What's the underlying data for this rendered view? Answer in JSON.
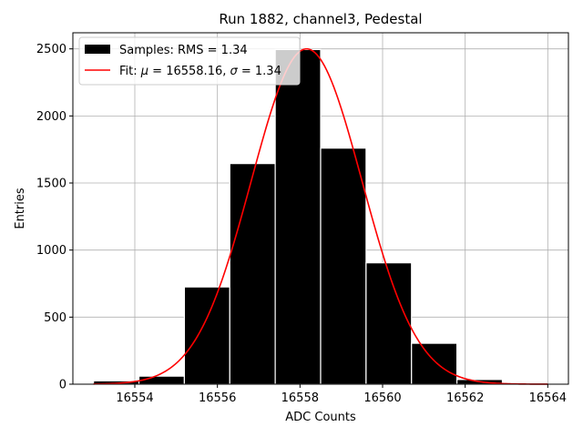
{
  "chart_data": {
    "type": "bar",
    "title": "Run 1882, channel3, Pedestal",
    "xlabel": "ADC Counts",
    "ylabel": "Entries",
    "xlim": [
      16552.5,
      16564.5
    ],
    "ylim": [
      0,
      2620
    ],
    "xticks": [
      16554,
      16556,
      16558,
      16560,
      16562,
      16564
    ],
    "yticks": [
      0,
      500,
      1000,
      1500,
      2000,
      2500
    ],
    "grid": true,
    "legend_position": "top-left",
    "bins": [
      {
        "x0": 16553.0,
        "x1": 16554.1,
        "count": 25
      },
      {
        "x0": 16554.1,
        "x1": 16555.2,
        "count": 60
      },
      {
        "x0": 16555.2,
        "x1": 16556.3,
        "count": 725
      },
      {
        "x0": 16556.3,
        "x1": 16557.4,
        "count": 1645
      },
      {
        "x0": 16557.4,
        "x1": 16558.5,
        "count": 2495
      },
      {
        "x0": 16558.5,
        "x1": 16559.6,
        "count": 1760
      },
      {
        "x0": 16559.6,
        "x1": 16560.7,
        "count": 905
      },
      {
        "x0": 16560.7,
        "x1": 16561.8,
        "count": 305
      },
      {
        "x0": 16561.8,
        "x1": 16562.9,
        "count": 35
      }
    ],
    "fit": {
      "mu": 16558.16,
      "sigma": 1.34,
      "amplitude": 2500,
      "x_range": [
        16553.0,
        16564.0
      ]
    },
    "series": [
      {
        "name": "Samples: RMS = 1.34",
        "kind": "histogram",
        "color": "#000000"
      },
      {
        "name_prefix": "Fit: ",
        "mu_symbol": "μ",
        "mu_text": " = 16558.16, ",
        "sigma_symbol": "σ",
        "sigma_text": " = 1.34",
        "kind": "line",
        "color": "#ff0000"
      }
    ]
  }
}
